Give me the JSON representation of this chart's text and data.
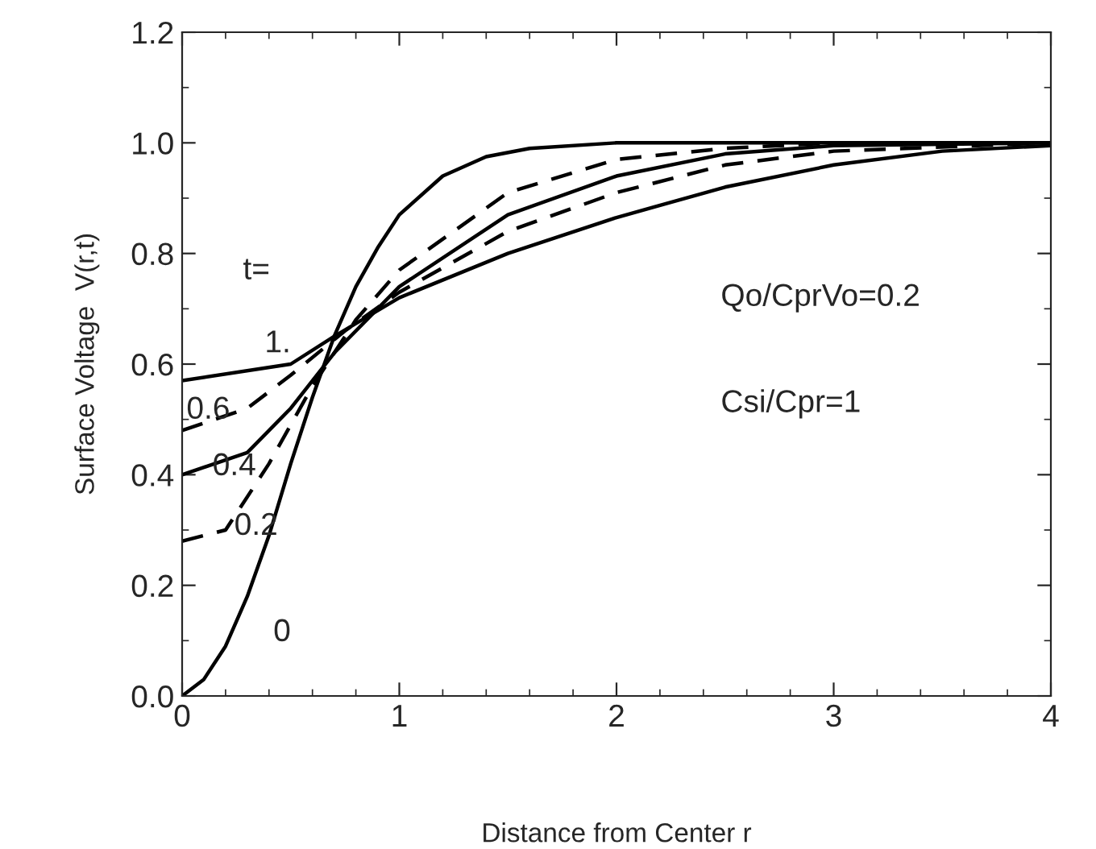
{
  "chart_data": {
    "type": "line",
    "xlabel": "Distance from Center r",
    "ylabel": "Surface Voltage  V(r,t)",
    "xlim": [
      0,
      4
    ],
    "ylim": [
      0,
      1.2
    ],
    "xticks": [
      0,
      1,
      2,
      3,
      4
    ],
    "yticks": [
      {
        "value": 0,
        "label": "0.0"
      },
      {
        "value": 0.2,
        "label": "0.2"
      },
      {
        "value": 0.4,
        "label": "0.4"
      },
      {
        "value": 0.6,
        "label": "0.6"
      },
      {
        "value": 0.8,
        "label": "0.8"
      },
      {
        "value": 1,
        "label": "1.0"
      },
      {
        "value": 1.2,
        "label": "1.2"
      }
    ],
    "grid": false,
    "legend": false,
    "marker": "none",
    "series": [
      {
        "color": "#000000",
        "line_style": "solid",
        "x": [
          0,
          0.1,
          0.2,
          0.3,
          0.4,
          0.5,
          0.6,
          0.7,
          0.8,
          0.9,
          1.0,
          1.2,
          1.4,
          1.6,
          2.0,
          3.0,
          4.0
        ],
        "values": [
          0,
          0.03,
          0.09,
          0.18,
          0.29,
          0.42,
          0.54,
          0.65,
          0.74,
          0.81,
          0.87,
          0.94,
          0.975,
          0.99,
          1.0,
          1.0,
          1.0
        ]
      },
      {
        "color": "#000000",
        "line_style": "dashed",
        "x": [
          0,
          0.2,
          0.4,
          0.6,
          0.8,
          1.0,
          1.5,
          2.0,
          2.5,
          3.0,
          4.0
        ],
        "values": [
          0.28,
          0.3,
          0.42,
          0.56,
          0.68,
          0.77,
          0.91,
          0.97,
          0.99,
          1.0,
          1.0
        ]
      },
      {
        "color": "#000000",
        "line_style": "solid",
        "x": [
          0,
          0.3,
          0.5,
          0.7,
          1.0,
          1.5,
          2.0,
          2.5,
          3.0,
          4.0
        ],
        "values": [
          0.4,
          0.44,
          0.52,
          0.62,
          0.74,
          0.87,
          0.94,
          0.98,
          0.995,
          1.0
        ]
      },
      {
        "color": "#000000",
        "line_style": "dashed",
        "x": [
          0,
          0.3,
          0.5,
          0.75,
          1.0,
          1.5,
          2.0,
          2.5,
          3.0,
          4.0
        ],
        "values": [
          0.48,
          0.52,
          0.58,
          0.66,
          0.73,
          0.84,
          0.91,
          0.96,
          0.985,
          1.0
        ]
      },
      {
        "color": "#000000",
        "line_style": "solid",
        "x": [
          0,
          0.5,
          0.7,
          1.0,
          1.5,
          2.0,
          2.5,
          3.0,
          3.5,
          4.0
        ],
        "values": [
          0.57,
          0.6,
          0.65,
          0.72,
          0.8,
          0.865,
          0.92,
          0.96,
          0.985,
          0.995
        ]
      }
    ],
    "annotations": [
      "t=",
      "1.",
      "0.6",
      "0.4",
      "0.2",
      "0",
      "Qo/CprVo=0.2",
      "Csi/Cpr=1"
    ]
  }
}
